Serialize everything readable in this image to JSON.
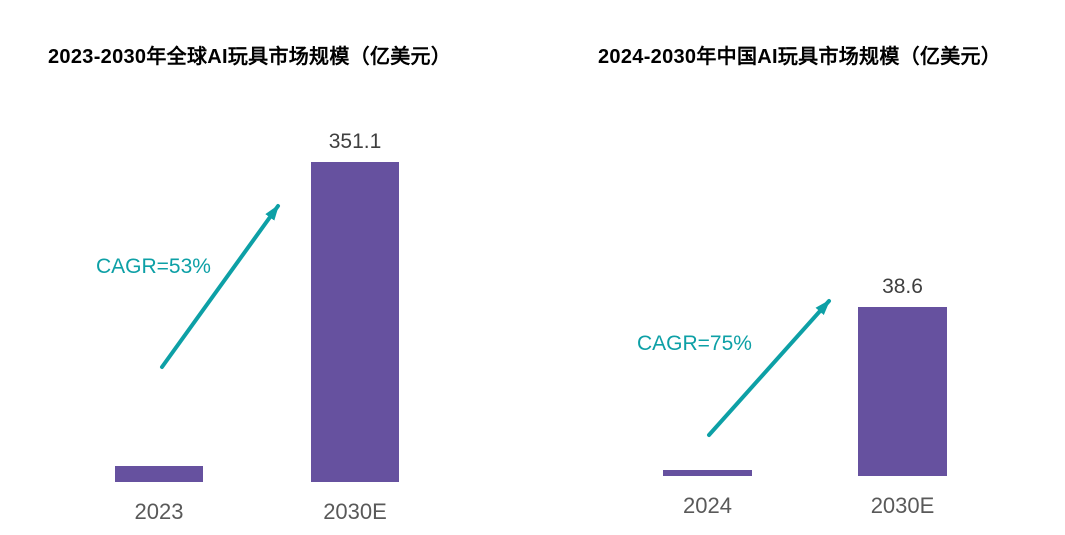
{
  "page": {
    "background_color": "#FFFFFF",
    "title_color": "#000000",
    "value_label_color": "#3F3F3F",
    "tick_label_color": "#595959"
  },
  "chart_data": [
    {
      "type": "bar",
      "title": "2023-2030年全球AI玩具市场规模（亿美元）",
      "categories": [
        "2023",
        "2030E"
      ],
      "values": [
        18,
        351.1
      ],
      "data_labels": [
        "",
        "351.1"
      ],
      "annotation": "CAGR=53%",
      "annotation_arrow": "up-right",
      "bar_color": "#66519F",
      "accent_color": "#0DA0A6",
      "ylim": [
        0,
        380
      ],
      "grid": false,
      "legend_position": "none",
      "x_axis_visible": false,
      "y_axis_visible": false
    },
    {
      "type": "bar",
      "title": "2024-2030年中国AI玩具市场规模（亿美元）",
      "categories": [
        "2024",
        "2030E"
      ],
      "values": [
        1.4,
        38.6
      ],
      "data_labels": [
        "",
        "38.6"
      ],
      "annotation": "CAGR=75%",
      "annotation_arrow": "up-right",
      "bar_color": "#66519F",
      "accent_color": "#0DA0A6",
      "ylim": [
        0,
        44
      ],
      "grid": false,
      "legend_position": "none",
      "x_axis_visible": false,
      "y_axis_visible": false
    }
  ]
}
